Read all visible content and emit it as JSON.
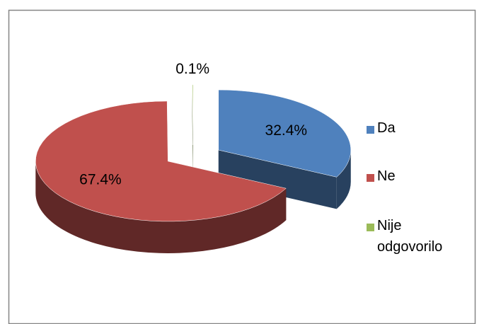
{
  "chart_data": {
    "type": "pie3d",
    "categories": [
      "Da",
      "Ne",
      "Nije odgovorilo"
    ],
    "values": [
      32.4,
      67.4,
      0.1
    ],
    "value_labels": [
      "32.4%",
      "67.4%",
      "0.1%"
    ],
    "colors": [
      "#4f81bd",
      "#c0504d",
      "#9bbb59"
    ],
    "legend": "right"
  }
}
